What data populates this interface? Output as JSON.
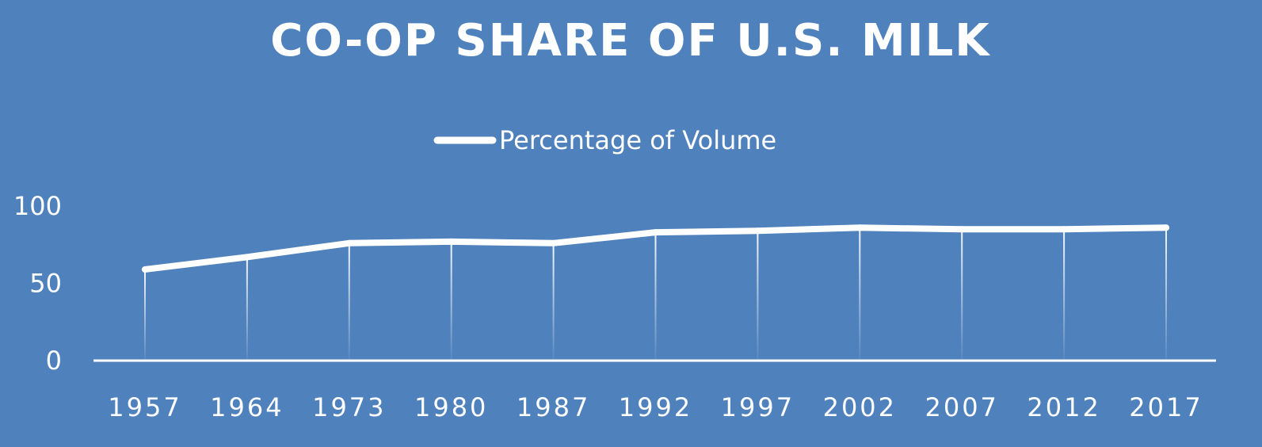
{
  "chart_data": {
    "type": "line",
    "title": "CO-OP SHARE OF U.S. MILK",
    "xlabel": "",
    "ylabel": "",
    "categories": [
      "1957",
      "1964",
      "1973",
      "1980",
      "1987",
      "1992",
      "1997",
      "2002",
      "2007",
      "2012",
      "2017"
    ],
    "series": [
      {
        "name": "Percentage of Volume",
        "values": [
          59,
          67,
          76,
          77,
          76,
          83,
          84,
          86,
          85,
          85,
          86
        ]
      }
    ],
    "ylim": [
      0,
      100
    ],
    "yticks": [
      "0",
      "50",
      "100"
    ],
    "grid": false,
    "drop_lines": true,
    "legend_position": "top-center",
    "colors": {
      "background": "#4f81bd",
      "line": "#ffffff",
      "text": "#ffffff"
    }
  }
}
